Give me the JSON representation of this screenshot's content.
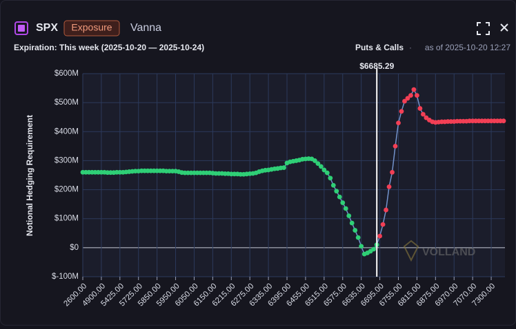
{
  "header": {
    "symbol": "SPX",
    "badge": "Exposure",
    "greek": "Vanna",
    "expiration": "Expiration: This week (2025-10-20 — 2025-10-24)",
    "filter": "Puts & Calls",
    "separator": "·",
    "asof": "as of 2025-10-20 12:27"
  },
  "chart_data": {
    "type": "line",
    "ylabel": "Notional Hedging Requirement",
    "watermark": "VOLLAND",
    "spot": {
      "value": 6685.29,
      "label": "$6685.29"
    },
    "line_color": "#7393cc",
    "below_spot_color": "#2fcf76",
    "above_spot_color": "#f23f55",
    "grid": true,
    "ylim": [
      -100,
      600
    ],
    "yticks": [
      {
        "value": -100,
        "label": "$-100M"
      },
      {
        "value": 0,
        "label": "$0"
      },
      {
        "value": 100,
        "label": "$100M"
      },
      {
        "value": 200,
        "label": "$200M"
      },
      {
        "value": 300,
        "label": "$300M"
      },
      {
        "value": 400,
        "label": "$400M"
      },
      {
        "value": 500,
        "label": "$500M"
      },
      {
        "value": 600,
        "label": "$600M"
      }
    ],
    "categories": [
      "2600.00",
      null,
      null,
      null,
      null,
      null,
      "4900.00",
      null,
      null,
      null,
      null,
      null,
      "5425.00",
      null,
      null,
      null,
      null,
      null,
      "5725.00",
      null,
      null,
      null,
      null,
      null,
      "5850.00",
      null,
      null,
      null,
      null,
      null,
      "5950.00",
      null,
      null,
      null,
      null,
      null,
      "6050.00",
      null,
      null,
      null,
      null,
      null,
      "6150.00",
      null,
      null,
      null,
      null,
      null,
      "6215.00",
      null,
      null,
      null,
      null,
      null,
      "6275.00",
      null,
      null,
      null,
      null,
      null,
      "6335.00",
      null,
      null,
      null,
      null,
      null,
      "6395.00",
      null,
      null,
      null,
      null,
      null,
      "6455.00",
      null,
      null,
      null,
      null,
      null,
      "6515.00",
      null,
      null,
      null,
      null,
      null,
      "6575.00",
      null,
      null,
      null,
      null,
      null,
      "6635.00",
      null,
      null,
      null,
      null,
      null,
      "6695.00",
      null,
      null,
      null,
      null,
      null,
      "6755.00",
      null,
      null,
      null,
      null,
      null,
      "6815.00",
      null,
      null,
      null,
      null,
      null,
      "6875.00",
      null,
      null,
      null,
      null,
      null,
      "6970.00",
      null,
      null,
      null,
      null,
      null,
      "7070.00",
      null,
      null,
      null,
      null,
      null,
      "7300.00",
      null,
      null,
      null,
      null
    ],
    "values": [
      260,
      260,
      260,
      260,
      260,
      260,
      260,
      260,
      259,
      259,
      259,
      260,
      260,
      260,
      261,
      262,
      263,
      264,
      264,
      265,
      265,
      265,
      265,
      265,
      265,
      265,
      265,
      264,
      264,
      264,
      264,
      262,
      259,
      258,
      258,
      258,
      258,
      258,
      258,
      258,
      258,
      258,
      257,
      256,
      256,
      256,
      255,
      255,
      254,
      254,
      254,
      253,
      253,
      254,
      255,
      256,
      258,
      262,
      265,
      267,
      268,
      270,
      272,
      273,
      275,
      276,
      292,
      296,
      298,
      300,
      302,
      305,
      306,
      307,
      306,
      300,
      290,
      280,
      268,
      258,
      240,
      215,
      195,
      175,
      155,
      135,
      110,
      85,
      60,
      35,
      5,
      -22,
      -18,
      -12,
      -5,
      10,
      40,
      80,
      130,
      210,
      260,
      350,
      430,
      470,
      505,
      515,
      525,
      545,
      525,
      480,
      460,
      448,
      440,
      434,
      432,
      433,
      434,
      434,
      435,
      435,
      435,
      436,
      436,
      436,
      436,
      437,
      437,
      437,
      437,
      437,
      437,
      437,
      437,
      437,
      437,
      437,
      437
    ]
  }
}
